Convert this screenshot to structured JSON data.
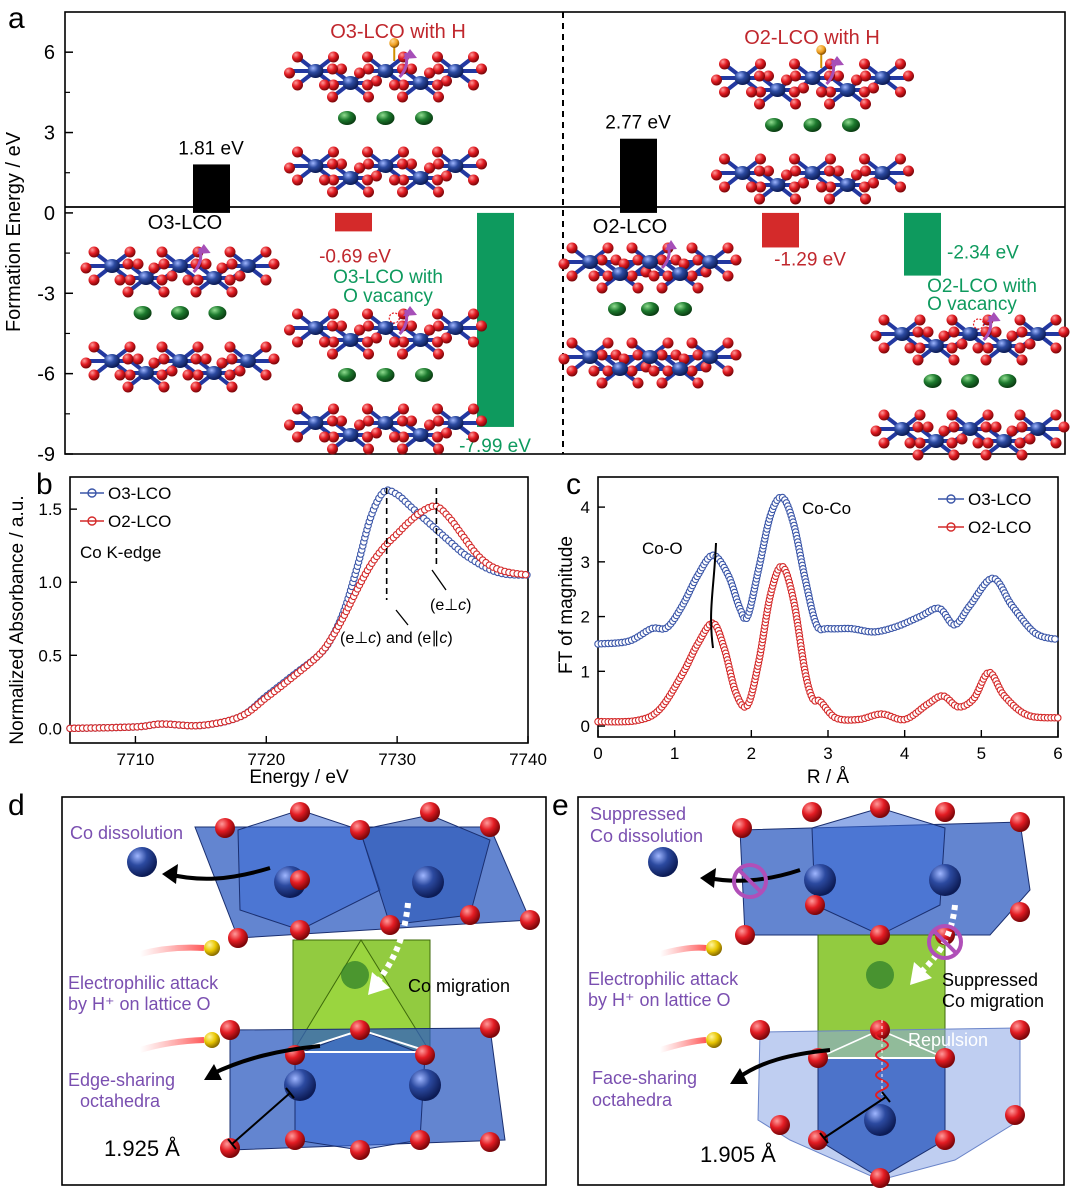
{
  "colors": {
    "black": "#000000",
    "red": "#d42a2a",
    "darkred": "#c0272d",
    "green": "#0e9a5e",
    "blue": "#3b56a8",
    "purple": "#7a4fb0",
    "cobalt": "#2c4aa0",
    "oxygen": "#e31c23",
    "lithium": "#1d7a2e",
    "poly_blue": "#2f5cc0",
    "poly_green": "#7fc21f"
  },
  "chart_data": [
    {
      "panel": "a",
      "type": "bar",
      "ylabel": "Formation Energy / eV",
      "ylim": [
        -9,
        7.5
      ],
      "yticks": [
        -9,
        -6,
        -3,
        0,
        3,
        6
      ],
      "series": [
        {
          "name": "O3-LCO",
          "value": 1.81,
          "label": "1.81 eV",
          "color": "black"
        },
        {
          "name": "O3-LCO with H",
          "value": -0.69,
          "label": "-0.69 eV",
          "color": "red"
        },
        {
          "name": "O3-LCO with O vacancy",
          "value": -7.99,
          "label": "-7.99 eV",
          "color": "green"
        },
        {
          "name": "O2-LCO",
          "value": 2.77,
          "label": "2.77 eV",
          "color": "black"
        },
        {
          "name": "O2-LCO with H",
          "value": -1.29,
          "label": "-1.29 eV",
          "color": "red"
        },
        {
          "name": "O2-LCO with O vacancy",
          "value": -2.34,
          "label": "-2.34 eV",
          "color": "green"
        }
      ],
      "structure_labels": {
        "o3": "O3-LCO",
        "o3_h": "O3-LCO with H",
        "o3_vac_1": "O3-LCO with",
        "o3_vac_2": "O vacancy",
        "o2": "O2-LCO",
        "o2_h": "O2-LCO with H",
        "o2_vac_1": "O2-LCO with",
        "o2_vac_2": "O vacancy"
      }
    },
    {
      "panel": "b",
      "type": "line",
      "xlabel": "Energy / eV",
      "ylabel": "Normalized Absorbance / a.u.",
      "annotation": "Co K-edge",
      "xlim": [
        7705,
        7740
      ],
      "ylim": [
        -0.1,
        1.72
      ],
      "xticks": [
        7710,
        7720,
        7730,
        7740
      ],
      "yticks": [
        0.0,
        0.5,
        1.0,
        1.5
      ],
      "series": [
        {
          "name": "O3-LCO",
          "color": "blue",
          "x": [
            7705,
            7710,
            7712,
            7715,
            7718,
            7720,
            7722,
            7724,
            7725,
            7726,
            7727,
            7728,
            7729,
            7730,
            7731,
            7732,
            7733,
            7734,
            7735,
            7736,
            7737,
            7738,
            7739,
            7740
          ],
          "y": [
            0.0,
            0.01,
            0.03,
            0.02,
            0.08,
            0.22,
            0.36,
            0.5,
            0.62,
            0.82,
            1.12,
            1.45,
            1.62,
            1.6,
            1.52,
            1.44,
            1.36,
            1.28,
            1.2,
            1.14,
            1.09,
            1.06,
            1.05,
            1.05
          ]
        },
        {
          "name": "O2-LCO",
          "color": "red",
          "x": [
            7705,
            7710,
            7712,
            7715,
            7718,
            7720,
            7722,
            7724,
            7725,
            7726,
            7727,
            7728,
            7729,
            7730,
            7731,
            7732,
            7733,
            7734,
            7735,
            7736,
            7737,
            7738,
            7739,
            7740
          ],
          "y": [
            0.0,
            0.01,
            0.03,
            0.02,
            0.08,
            0.21,
            0.35,
            0.5,
            0.62,
            0.78,
            0.96,
            1.12,
            1.24,
            1.33,
            1.42,
            1.49,
            1.52,
            1.44,
            1.32,
            1.2,
            1.12,
            1.08,
            1.06,
            1.05
          ]
        }
      ],
      "markers": [
        7729.2,
        7733
      ],
      "marker_labels": {
        "peak2": "(e⊥",
        "peak2_c": "c",
        "peak2_end": ")",
        "peak1_a": "(e⊥",
        "peak1_c1": "c",
        "peak1_b": ") and (e∥",
        "peak1_c2": "c",
        "peak1_end": ")"
      }
    },
    {
      "panel": "c",
      "type": "line",
      "xlabel": "R / Å",
      "ylabel": "FT of magnitude",
      "xlim": [
        0,
        6
      ],
      "ylim": [
        -0.2,
        4.55
      ],
      "xticks": [
        0,
        1,
        2,
        3,
        4,
        5,
        6
      ],
      "yticks": [
        0,
        1,
        2,
        3,
        4
      ],
      "series": [
        {
          "name": "O3-LCO",
          "color": "blue",
          "x": [
            0,
            0.4,
            0.7,
            0.9,
            1.1,
            1.3,
            1.5,
            1.7,
            1.85,
            1.95,
            2.1,
            2.25,
            2.4,
            2.55,
            2.7,
            2.85,
            3.0,
            3.3,
            3.6,
            3.9,
            4.2,
            4.45,
            4.65,
            4.85,
            5.15,
            5.4,
            5.7,
            6.0
          ],
          "y": [
            1.5,
            1.55,
            1.78,
            1.8,
            2.2,
            2.75,
            3.12,
            2.75,
            2.15,
            2.0,
            2.9,
            3.85,
            4.18,
            3.7,
            2.7,
            1.85,
            1.78,
            1.78,
            1.72,
            1.82,
            2.0,
            2.15,
            1.85,
            2.2,
            2.7,
            2.2,
            1.7,
            1.58
          ]
        },
        {
          "name": "O2-LCO",
          "color": "red",
          "x": [
            0,
            0.5,
            0.8,
            1.1,
            1.3,
            1.5,
            1.65,
            1.8,
            1.95,
            2.1,
            2.25,
            2.4,
            2.55,
            2.7,
            2.8,
            2.9,
            3.1,
            3.4,
            3.7,
            4.0,
            4.3,
            4.5,
            4.7,
            4.9,
            5.1,
            5.3,
            5.6,
            6.0
          ],
          "y": [
            0.08,
            0.1,
            0.3,
            0.95,
            1.5,
            1.88,
            1.4,
            0.6,
            0.38,
            1.2,
            2.4,
            2.92,
            2.3,
            1.0,
            0.5,
            0.45,
            0.15,
            0.12,
            0.22,
            0.12,
            0.4,
            0.55,
            0.35,
            0.5,
            0.98,
            0.55,
            0.2,
            0.15
          ]
        }
      ],
      "peak_labels": {
        "co_o": "Co-O",
        "co_co": "Co-Co"
      }
    }
  ],
  "panels": {
    "a": "a",
    "b": "b",
    "c": "c",
    "d": "d",
    "e": "e"
  },
  "panel_d": {
    "co_dissolution": "Co dissolution",
    "electrophilic_1": "Electrophilic attack",
    "electrophilic_2": "by H⁺ on lattice O",
    "co_migration": "Co migration",
    "edge_sharing_1": "Edge-sharing",
    "edge_sharing_2": "octahedra",
    "bond_length": "1.925 Å"
  },
  "panel_e": {
    "suppressed_diss_1": "Suppressed",
    "suppressed_diss_2": "Co dissolution",
    "electrophilic_1": "Electrophilic attack",
    "electrophilic_2": "by H⁺ on lattice O",
    "suppressed_mig_1": "Suppressed",
    "suppressed_mig_2": "Co migration",
    "repulsion": "Repulsion",
    "face_sharing_1": "Face-sharing",
    "face_sharing_2": "octahedra",
    "bond_length": "1.905 Å"
  }
}
